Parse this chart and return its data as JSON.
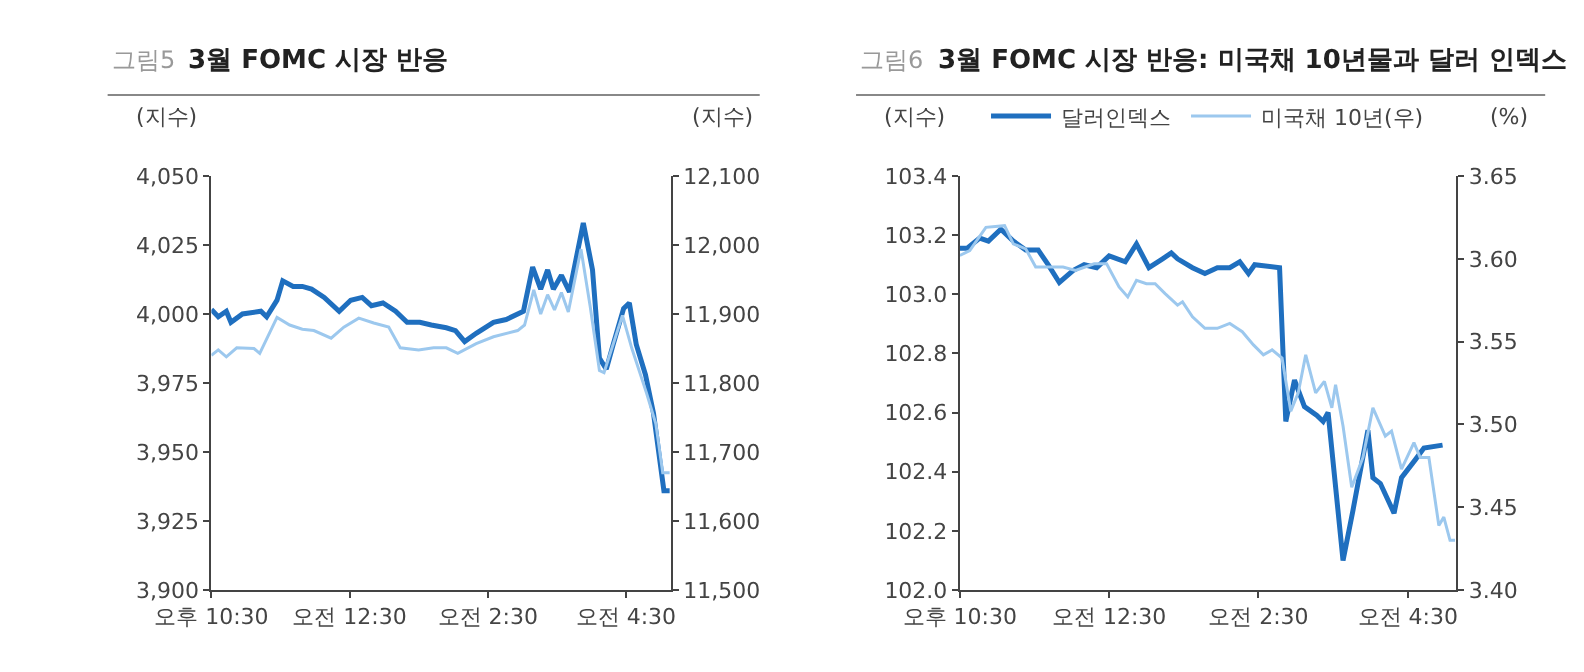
{
  "chart_data": [
    {
      "type": "line",
      "title": "3월 FOMC 시장 반응",
      "annotations": [
        "그림5"
      ],
      "ylabel": "(지수)",
      "y2label": "(지수)",
      "legend": false,
      "grid": false,
      "xlim": [
        "--03-22T22:30",
        "--03-23T05:09"
      ],
      "xticks": [
        {
          "value": "--03-22T22:30",
          "label": "오후 10:30"
        },
        {
          "value": "--03-23T00:30",
          "label": "오전 12:30"
        },
        {
          "value": "--03-23T02:30",
          "label": "오전 2:30"
        },
        {
          "value": "--03-23T04:30",
          "label": "오전 4:30"
        }
      ],
      "ylim": [
        3900,
        4050
      ],
      "yticks": [
        {
          "value": 3900,
          "label": "3,900"
        },
        {
          "value": 3925,
          "label": "3,925"
        },
        {
          "value": 3950,
          "label": "3,950"
        },
        {
          "value": 3975,
          "label": "3,975"
        },
        {
          "value": 4000,
          "label": "4,000"
        },
        {
          "value": 4025,
          "label": "4,025"
        },
        {
          "value": 4050,
          "label": "4,050"
        }
      ],
      "y2lim": [
        11500,
        12100
      ],
      "y2ticks": [
        {
          "value": 11500,
          "label": "11,500"
        },
        {
          "value": 11600,
          "label": "11,600"
        },
        {
          "value": 11700,
          "label": "11,700"
        },
        {
          "value": 11800,
          "label": "11,800"
        },
        {
          "value": 11900,
          "label": "11,900"
        },
        {
          "value": 12000,
          "label": "12,000"
        },
        {
          "value": 12100,
          "label": "12,100"
        }
      ],
      "series": [
        {
          "color": "#9cc8ee",
          "axis": "y2",
          "x": [
            "--03-22T22:30",
            "--03-22T22:36",
            "--03-22T22:43",
            "--03-22T22:52",
            "--03-22T23:07",
            "--03-22T23:12",
            "--03-22T23:27",
            "--03-22T23:38",
            "--03-22T23:49",
            "--03-22T23:59",
            "--03-23T00:14",
            "--03-23T00:25",
            "--03-23T00:38",
            "--03-23T00:51",
            "--03-23T01:04",
            "--03-23T01:14",
            "--03-23T01:30",
            "--03-23T01:43",
            "--03-23T01:54",
            "--03-23T02:04",
            "--03-23T02:20",
            "--03-23T02:35",
            "--03-23T02:56",
            "--03-23T03:02",
            "--03-23T03:10",
            "--03-23T03:16",
            "--03-23T03:22",
            "--03-23T03:28",
            "--03-23T03:34",
            "--03-23T03:40",
            "--03-23T03:51",
            "--03-23T03:59",
            "--03-23T04:07",
            "--03-23T04:11",
            "--03-23T04:27",
            "--03-23T04:35",
            "--03-23T04:48",
            "--03-23T04:56",
            "--03-23T05:02",
            "--03-23T05:08"
          ],
          "values": [
            11840,
            11848,
            11838,
            11851,
            11850,
            11843,
            11895,
            11884,
            11878,
            11876,
            11865,
            11881,
            11894,
            11887,
            11881,
            11851,
            11848,
            11851,
            11851,
            11843,
            11857,
            11867,
            11876,
            11884,
            11935,
            11900,
            11928,
            11906,
            11931,
            11903,
            11994,
            11911,
            11818,
            11815,
            11898,
            11851,
            11785,
            11741,
            11670,
            11670
          ]
        },
        {
          "color": "#1f6fbf",
          "x": [
            "--03-22T22:30",
            "--03-22T22:36",
            "--03-22T22:43",
            "--03-22T22:47",
            "--03-22T22:57",
            "--03-22T23:13",
            "--03-22T23:18",
            "--03-22T23:27",
            "--03-22T23:32",
            "--03-22T23:41",
            "--03-22T23:49",
            "--03-22T23:57",
            "--03-23T00:08",
            "--03-23T00:21",
            "--03-23T00:31",
            "--03-23T00:41",
            "--03-23T00:49",
            "--03-23T00:59",
            "--03-23T01:10",
            "--03-23T01:20",
            "--03-23T01:31",
            "--03-23T01:41",
            "--03-23T01:54",
            "--03-23T02:02",
            "--03-23T02:10",
            "--03-23T02:20",
            "--03-23T02:35",
            "--03-23T02:46",
            "--03-23T03:01",
            "--03-23T03:09",
            "--03-23T03:16",
            "--03-23T03:22",
            "--03-23T03:27",
            "--03-23T03:34",
            "--03-23T03:41",
            "--03-23T03:53",
            "--03-23T04:01",
            "--03-23T04:07",
            "--03-23T04:13",
            "--03-23T04:19",
            "--03-23T04:28",
            "--03-23T04:33",
            "--03-23T04:39",
            "--03-23T04:47",
            "--03-23T04:54",
            "--03-23T05:03",
            "--03-23T05:08"
          ],
          "values": [
            4001.6,
            3999,
            4001,
            3997,
            4000,
            4001,
            3999,
            4005,
            4012,
            4010,
            4010,
            4009,
            4006,
            4001,
            4005,
            4006,
            4003,
            4004,
            4001,
            3997,
            3997,
            3996,
            3995,
            3994,
            3990,
            3993,
            3997,
            3998,
            4001,
            4017,
            4009,
            4016,
            4009,
            4014,
            4008,
            4033,
            4016,
            3984,
            3980,
            3989,
            4002,
            4004,
            3989,
            3978,
            3964,
            3936,
            3936
          ]
        }
      ]
    },
    {
      "type": "line",
      "title": "3월 FOMC 시장 반응: 미국채 10년물과 달러 인덱스",
      "annotations": [
        "그림6"
      ],
      "ylabel": "(지수)",
      "y2label": "(%)",
      "legend": "top",
      "grid": false,
      "xlim": [
        "--03-22T22:30",
        "--03-23T05:09"
      ],
      "xticks": [
        {
          "value": "--03-22T22:30",
          "label": "오후 10:30"
        },
        {
          "value": "--03-23T00:30",
          "label": "오전 12:30"
        },
        {
          "value": "--03-23T02:30",
          "label": "오전 2:30"
        },
        {
          "value": "--03-23T04:30",
          "label": "오전 4:30"
        }
      ],
      "ylim": [
        102.0,
        103.4
      ],
      "yticks": [
        {
          "value": 102.0,
          "label": "102.0"
        },
        {
          "value": 102.2,
          "label": "102.2"
        },
        {
          "value": 102.4,
          "label": "102.4"
        },
        {
          "value": 102.6,
          "label": "102.6"
        },
        {
          "value": 102.8,
          "label": "102.8"
        },
        {
          "value": 103.0,
          "label": "103.0"
        },
        {
          "value": 103.2,
          "label": "103.2"
        },
        {
          "value": 103.4,
          "label": "103.4"
        }
      ],
      "y2lim": [
        3.4,
        3.65
      ],
      "y2ticks": [
        {
          "value": 3.4,
          "label": "3.40"
        },
        {
          "value": 3.45,
          "label": "3.45"
        },
        {
          "value": 3.5,
          "label": "3.50"
        },
        {
          "value": 3.55,
          "label": "3.55"
        },
        {
          "value": 3.6,
          "label": "3.60"
        },
        {
          "value": 3.65,
          "label": "3.65"
        }
      ],
      "series": [
        {
          "name": "미국채 10년(우)",
          "color": "#9cc8ee",
          "axis": "y2",
          "x": [
            "--03-22T22:30",
            "--03-22T22:38",
            "--03-22T22:51",
            "--03-22T23:06",
            "--03-22T23:13",
            "--03-22T23:23",
            "--03-22T23:31",
            "--03-22T23:40",
            "--03-22T23:53",
            "--03-23T00:03",
            "--03-23T00:18",
            "--03-23T00:28",
            "--03-23T00:38",
            "--03-23T00:45",
            "--03-23T00:52",
            "--03-23T01:00",
            "--03-23T01:07",
            "--03-23T01:15",
            "--03-23T01:25",
            "--03-23T01:29",
            "--03-23T01:37",
            "--03-23T01:47",
            "--03-23T01:57",
            "--03-23T02:07",
            "--03-23T02:17",
            "--03-23T02:26",
            "--03-23T02:34",
            "--03-23T02:41",
            "--03-23T02:49",
            "--03-23T02:56",
            "--03-23T03:02",
            "--03-23T03:08",
            "--03-23T03:16",
            "--03-23T03:23",
            "--03-23T03:29",
            "--03-23T03:32",
            "--03-23T03:38",
            "--03-23T03:45",
            "--03-23T03:54",
            "--03-23T04:02",
            "--03-23T04:12",
            "--03-23T04:17",
            "--03-23T04:25",
            "--03-23T04:35",
            "--03-23T04:40",
            "--03-23T04:47",
            "--03-23T04:55",
            "--03-23T04:59",
            "--03-23T05:04",
            "--03-23T05:08"
          ],
          "values": [
            3.602,
            3.605,
            3.619,
            3.62,
            3.609,
            3.606,
            3.595,
            3.595,
            3.595,
            3.593,
            3.597,
            3.597,
            3.583,
            3.577,
            3.587,
            3.585,
            3.585,
            3.579,
            3.572,
            3.574,
            3.565,
            3.558,
            3.558,
            3.561,
            3.556,
            3.548,
            3.542,
            3.545,
            3.54,
            3.508,
            3.519,
            3.542,
            3.519,
            3.526,
            3.51,
            3.524,
            3.499,
            3.462,
            3.48,
            3.51,
            3.493,
            3.496,
            3.473,
            3.489,
            3.48,
            3.48,
            3.439,
            3.444,
            3.43,
            3.43
          ]
        },
        {
          "name": "달러인덱스",
          "color": "#1f6fbf",
          "x": [
            "--03-22T22:30",
            "--03-22T22:36",
            "--03-22T22:46",
            "--03-22T22:53",
            "--03-22T23:03",
            "--03-22T23:13",
            "--03-22T23:23",
            "--03-22T23:33",
            "--03-22T23:41",
            "--03-22T23:50",
            "--03-23T00:01",
            "--03-23T00:10",
            "--03-23T00:20",
            "--03-23T00:30",
            "--03-23T00:43",
            "--03-23T00:52",
            "--03-23T01:02",
            "--03-23T01:13",
            "--03-23T01:20",
            "--03-23T01:25",
            "--03-23T01:37",
            "--03-23T01:47",
            "--03-23T01:57",
            "--03-23T02:07",
            "--03-23T02:15",
            "--03-23T02:22",
            "--03-23T02:27",
            "--03-23T02:47",
            "--03-23T02:52",
            "--03-23T02:59",
            "--03-23T03:07",
            "--03-23T03:17",
            "--03-23T03:22",
            "--03-23T03:26",
            "--03-23T03:38",
            "--03-23T03:46",
            "--03-23T03:58",
            "--03-23T04:02",
            "--03-23T04:08",
            "--03-23T04:19",
            "--03-23T04:25",
            "--03-23T04:36",
            "--03-23T04:43",
            "--03-23T04:58"
          ],
          "values": [
            103.156,
            103.156,
            103.19,
            103.18,
            103.22,
            103.18,
            103.15,
            103.15,
            103.1,
            103.04,
            103.08,
            103.1,
            103.09,
            103.13,
            103.11,
            103.17,
            103.09,
            103.12,
            103.14,
            103.12,
            103.09,
            103.07,
            103.09,
            103.09,
            103.11,
            103.07,
            103.1,
            103.09,
            102.57,
            102.71,
            102.62,
            102.59,
            102.57,
            102.6,
            102.1,
            102.27,
            102.54,
            102.38,
            102.36,
            102.26,
            102.38,
            102.44,
            102.48,
            102.49
          ]
        }
      ]
    }
  ]
}
